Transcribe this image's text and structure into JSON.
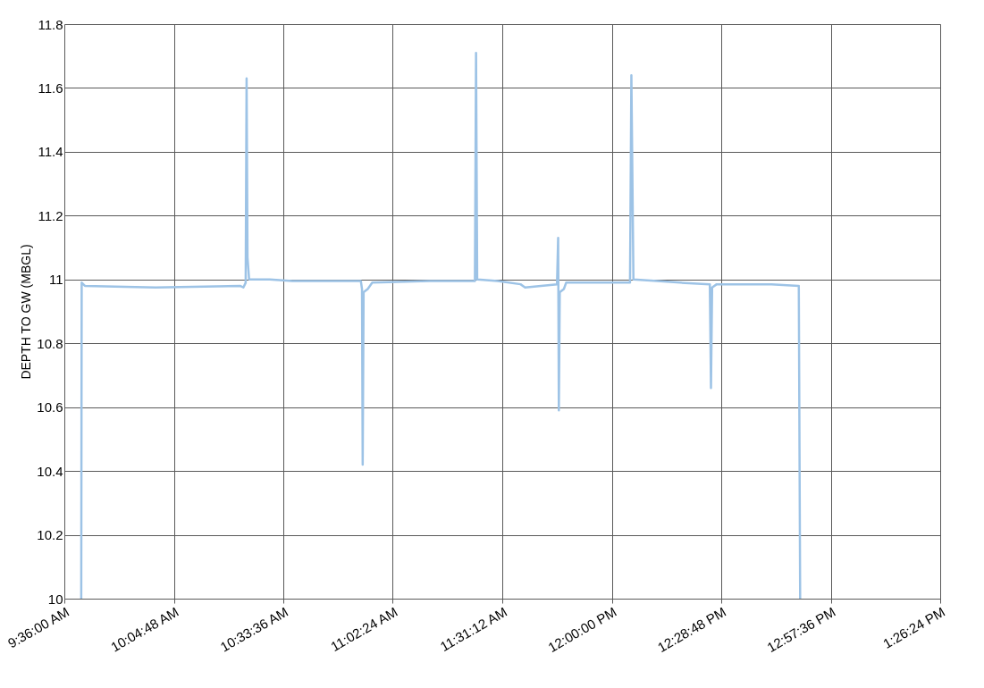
{
  "chart_data": {
    "type": "line",
    "ylabel": "DEPTH TO GW (MBGL)",
    "x": [
      9.674,
      9.676,
      9.69,
      10.0,
      10.37,
      10.385,
      10.395,
      10.399,
      10.403,
      10.41,
      10.5,
      10.6,
      10.7,
      10.9,
      10.905,
      10.908,
      10.912,
      10.93,
      10.95,
      11.2,
      11.4,
      11.405,
      11.41,
      11.5,
      11.6,
      11.62,
      11.76,
      11.765,
      11.768,
      11.772,
      11.79,
      11.8,
      12.08,
      12.086,
      12.095,
      12.2,
      12.3,
      12.43,
      12.435,
      12.44,
      12.46,
      12.7,
      12.82,
      12.826
    ],
    "series": [
      {
        "color": "#9dc3e6",
        "values": [
          10.0,
          10.99,
          10.98,
          10.975,
          10.98,
          10.975,
          10.99,
          11.63,
          11.07,
          11.0,
          11.0,
          10.995,
          10.995,
          10.995,
          10.97,
          10.42,
          10.96,
          10.97,
          10.99,
          10.995,
          10.995,
          11.71,
          11.0,
          10.995,
          10.985,
          10.975,
          10.985,
          11.13,
          10.59,
          10.96,
          10.97,
          10.99,
          10.99,
          11.64,
          11.0,
          10.995,
          10.99,
          10.985,
          10.66,
          10.975,
          10.985,
          10.985,
          10.98,
          10.0
        ]
      }
    ],
    "xlim": [
      9.6,
      13.44
    ],
    "xticks": [
      {
        "value": 9.6,
        "label": "9:36:00 AM"
      },
      {
        "value": 10.08,
        "label": "10:04:48 AM"
      },
      {
        "value": 10.56,
        "label": "10:33:36 AM"
      },
      {
        "value": 11.04,
        "label": "11:02:24 AM"
      },
      {
        "value": 11.52,
        "label": "11:31:12 AM"
      },
      {
        "value": 12.0,
        "label": "12:00:00 PM"
      },
      {
        "value": 12.48,
        "label": "12:28:48 PM"
      },
      {
        "value": 12.96,
        "label": "12:57:36 PM"
      },
      {
        "value": 13.44,
        "label": "1:26:24 PM"
      }
    ],
    "ylim": [
      10,
      11.8
    ],
    "yticks": [
      10,
      10.2,
      10.4,
      10.6,
      10.8,
      11,
      11.2,
      11.4,
      11.6,
      11.8
    ],
    "grid": true,
    "marker": "none",
    "line_style": "solid"
  }
}
